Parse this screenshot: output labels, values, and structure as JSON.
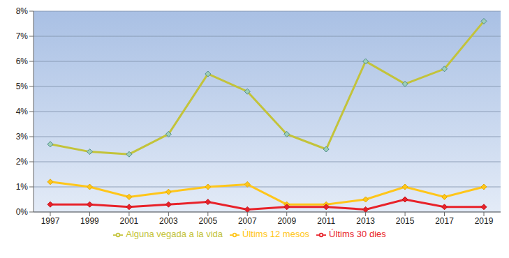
{
  "chart_data": {
    "type": "line",
    "categories": [
      "1997",
      "1999",
      "2001",
      "2003",
      "2005",
      "2007",
      "2009",
      "2011",
      "2013",
      "2015",
      "2017",
      "2019"
    ],
    "series": [
      {
        "name": "Alguna vegada a la vida",
        "color": "#c3c33a",
        "marker": "diamond",
        "values": [
          2.7,
          2.4,
          2.3,
          3.1,
          5.5,
          4.8,
          3.1,
          2.5,
          6.0,
          5.1,
          5.7,
          7.6
        ]
      },
      {
        "name": "Últims 12 mesos",
        "color": "#ffc61a",
        "marker": "diamond",
        "values": [
          1.2,
          1.0,
          0.6,
          0.8,
          1.0,
          1.1,
          0.3,
          0.3,
          0.5,
          1.0,
          0.6,
          1.0
        ]
      },
      {
        "name": "Últims 30 dies",
        "color": "#e8222a",
        "marker": "diamond",
        "values": [
          0.3,
          0.3,
          0.2,
          0.3,
          0.4,
          0.1,
          0.2,
          0.2,
          0.1,
          0.5,
          0.2,
          0.2
        ]
      }
    ],
    "ylim": [
      0,
      8
    ],
    "yticks": [
      {
        "value": 0,
        "label": "0%"
      },
      {
        "value": 1,
        "label": "1%"
      },
      {
        "value": 2,
        "label": "2%"
      },
      {
        "value": 3,
        "label": "3%"
      },
      {
        "value": 4,
        "label": "4%"
      },
      {
        "value": 5,
        "label": "5%"
      },
      {
        "value": 6,
        "label": "6%"
      },
      {
        "value": 7,
        "label": "7%"
      },
      {
        "value": 8,
        "label": "8%"
      }
    ],
    "grid": true,
    "legend": "bottom"
  }
}
